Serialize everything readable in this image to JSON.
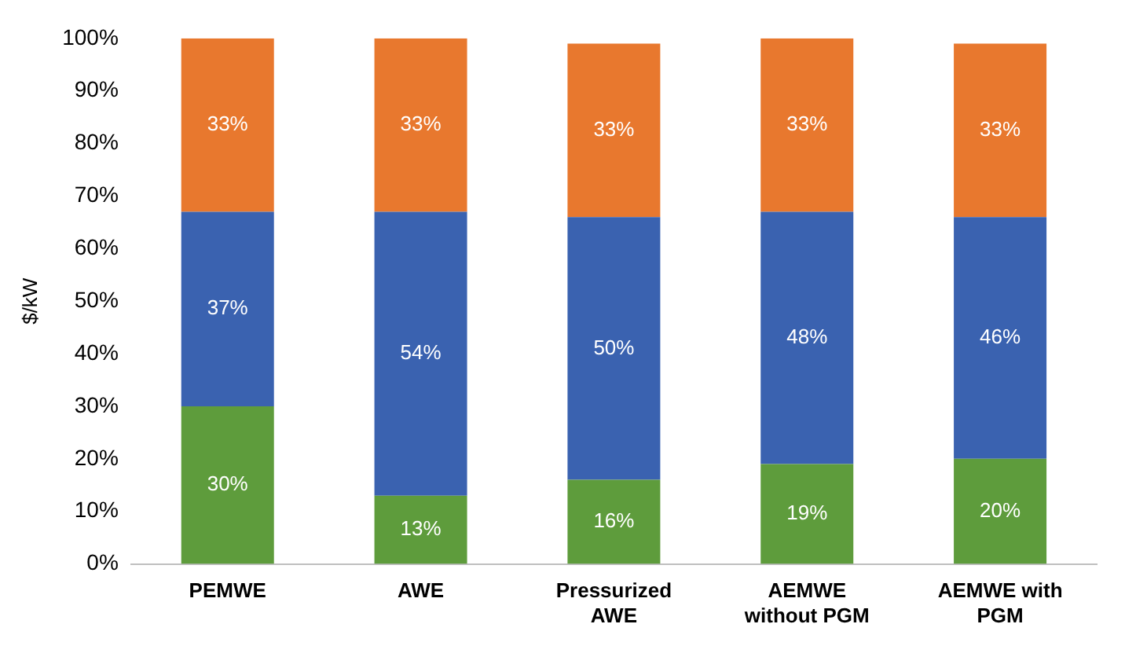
{
  "chart_data": {
    "type": "bar",
    "stacked": true,
    "ylabel": "$/kW",
    "categories": [
      "PEMWE",
      "AWE",
      "Pressurized AWE",
      "AEMWE without PGM",
      "AEMWE with PGM"
    ],
    "series": [
      {
        "color": "#5e9c3c",
        "values": [
          30,
          13,
          16,
          19,
          20
        ],
        "value_labels": [
          "30%",
          "13%",
          "16%",
          "19%",
          "20%"
        ]
      },
      {
        "color": "#3a62b0",
        "values": [
          37,
          54,
          50,
          48,
          46
        ],
        "value_labels": [
          "37%",
          "54%",
          "50%",
          "48%",
          "46%"
        ]
      },
      {
        "color": "#e8782e",
        "values": [
          33,
          33,
          33,
          33,
          33
        ],
        "value_labels": [
          "33%",
          "33%",
          "33%",
          "33%",
          "33%"
        ]
      }
    ],
    "ylim": [
      0,
      100
    ],
    "yticks": [
      {
        "value": 0,
        "label": "0%"
      },
      {
        "value": 10,
        "label": "10%"
      },
      {
        "value": 20,
        "label": "20%"
      },
      {
        "value": 30,
        "label": "30%"
      },
      {
        "value": 40,
        "label": "40%"
      },
      {
        "value": 50,
        "label": "50%"
      },
      {
        "value": 60,
        "label": "60%"
      },
      {
        "value": 70,
        "label": "70%"
      },
      {
        "value": 80,
        "label": "80%"
      },
      {
        "value": 90,
        "label": "90%"
      },
      {
        "value": 100,
        "label": "100%"
      }
    ],
    "grid": false,
    "legend": false
  }
}
